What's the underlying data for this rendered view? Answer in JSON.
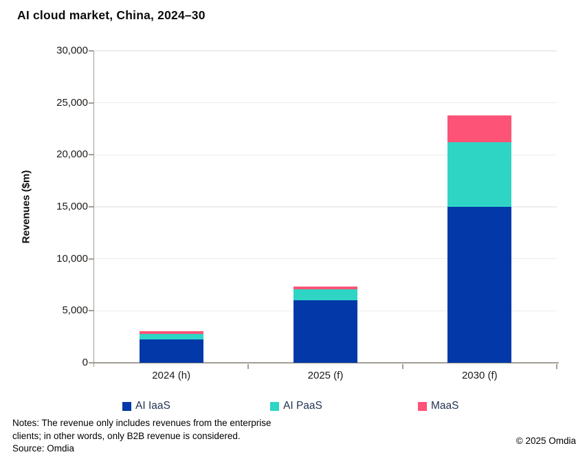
{
  "title": "AI cloud market, China, 2024–30",
  "chart_data": {
    "type": "bar",
    "stacked": true,
    "title": "AI cloud market, China, 2024–30",
    "categories": [
      "2024 (h)",
      "2025 (f)",
      "2030 (f)"
    ],
    "series": [
      {
        "name": "AI IaaS",
        "color": "#0338a8",
        "values": [
          2250,
          6000,
          15000
        ]
      },
      {
        "name": "AI PaaS",
        "color": "#2ed5c5",
        "values": [
          500,
          1050,
          6200
        ]
      },
      {
        "name": "MaaS",
        "color": "#fd5377",
        "values": [
          300,
          300,
          2600
        ]
      }
    ],
    "xlabel": "",
    "ylabel": "Revenues ($m)",
    "ylim": [
      0,
      30000
    ],
    "ytick_step": 5000,
    "ytick_labels": [
      "0",
      "5,000",
      "10,000",
      "15,000",
      "20,000",
      "25,000",
      "30,000"
    ],
    "grid": true,
    "legend_position": "bottom"
  },
  "colors": {
    "axis": "#a39b93",
    "gridline": "#ececec",
    "legend_text": "#1e3150"
  },
  "footer": {
    "notes_line1": "Notes: The revenue only includes revenues from the enterprise",
    "notes_line2": "clients; in other words, only B2B revenue is considered.",
    "source": "Source: Omdia",
    "copyright": "© 2025 Omdia"
  }
}
